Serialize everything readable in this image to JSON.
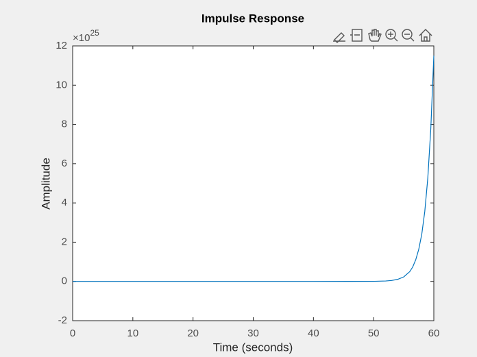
{
  "chart_data": {
    "type": "line",
    "title": "Impulse Response",
    "x_label": "Time (seconds)",
    "y_label": "Amplitude",
    "y_exponent_base": "×10",
    "y_exponent": "25",
    "x": [
      0,
      10,
      20,
      30,
      40,
      50,
      52,
      53,
      54,
      55,
      56,
      56.5,
      57,
      57.5,
      58,
      58.5,
      59,
      59.5,
      60
    ],
    "values": [
      0,
      0,
      0,
      0,
      0,
      0.005,
      0.022,
      0.049,
      0.107,
      0.23,
      0.5,
      0.74,
      1.11,
      1.64,
      2.41,
      3.57,
      5.27,
      7.79,
      11.5
    ],
    "color": "#0072bd",
    "xlim": [
      0,
      60
    ],
    "xticks": [
      0,
      10,
      20,
      30,
      40,
      50,
      60
    ],
    "ylim": [
      -2,
      12
    ],
    "yticks": [
      -2,
      0,
      2,
      4,
      6,
      8,
      10,
      12
    ],
    "grid": false
  }
}
